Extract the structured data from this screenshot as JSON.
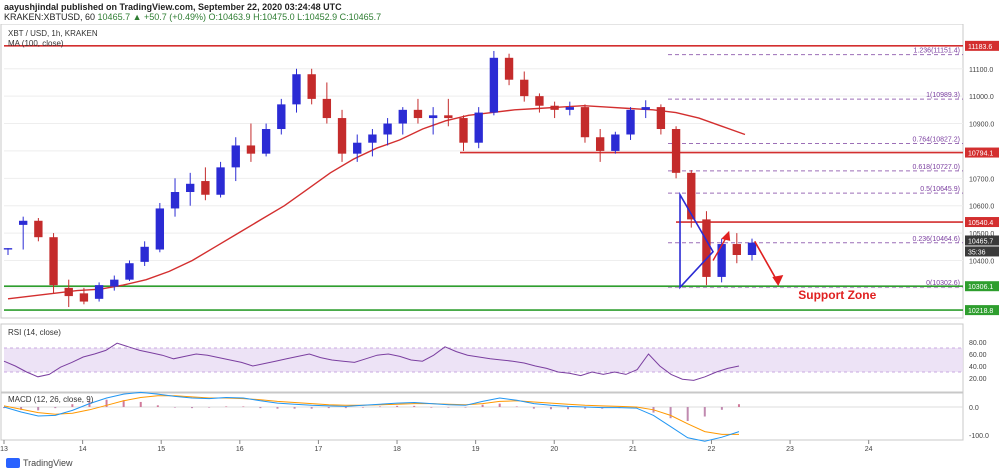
{
  "header": {
    "author_line": "aayushjindal published on TradingView.com, September 22, 2020 03:24:48 UTC",
    "symbol": "KRAKEN:XBTUSD, 60",
    "ohlc": "10465.7 ▲ +50.7 (+0.49%) O:10463.9 H:10475.0 L:10452.9 C:10465.7"
  },
  "footer": {
    "brand": "TradingView"
  },
  "colors": {
    "up": "#2b2bd4",
    "down": "#c42b2b",
    "ma": "#d32f2f",
    "resistance": "#d32f2f",
    "support": "#2e9e2e",
    "fib": "#7b3fa0",
    "triangle": "#2b2bd4",
    "arrow": "#e02020",
    "rsi_line": "#7b3fa0",
    "rsi_band": "#e9dcf4",
    "macd_line": "#2196f3",
    "signal_line": "#ff9800",
    "hist_pos": "#d07a9a",
    "hist_neg": "#c08ab0",
    "label_red": "#d32f2f",
    "label_green": "#2e9e2e",
    "label_dark": "#3a3a3a"
  },
  "chart_data": {
    "type": "candlestick",
    "title": "XBT / USD, 1h, KRAKEN",
    "indicator_label": "MA (100, close)",
    "x_ticks": [
      "13",
      "14",
      "15",
      "16",
      "17",
      "18",
      "19",
      "20",
      "21",
      "22",
      "23",
      "24"
    ],
    "y_ticks": [
      10300,
      10400,
      10500,
      10600,
      10700,
      10800,
      10900,
      11000,
      11100
    ],
    "y_range": [
      10190,
      11205
    ],
    "x_range": [
      13.0,
      25.2
    ],
    "ohlc_series": [
      [
        10440,
        10445,
        10420,
        10445
      ],
      [
        10530,
        10560,
        10440,
        10545
      ],
      [
        10545,
        10555,
        10470,
        10485
      ],
      [
        10485,
        10500,
        10280,
        10310
      ],
      [
        10300,
        10330,
        10230,
        10270
      ],
      [
        10280,
        10300,
        10240,
        10250
      ],
      [
        10260,
        10320,
        10250,
        10310
      ],
      [
        10305,
        10345,
        10290,
        10330
      ],
      [
        10330,
        10400,
        10325,
        10390
      ],
      [
        10395,
        10470,
        10380,
        10450
      ],
      [
        10440,
        10610,
        10430,
        10590
      ],
      [
        10590,
        10700,
        10560,
        10650
      ],
      [
        10650,
        10720,
        10600,
        10680
      ],
      [
        10690,
        10740,
        10620,
        10640
      ],
      [
        10640,
        10760,
        10630,
        10740
      ],
      [
        10740,
        10850,
        10690,
        10820
      ],
      [
        10820,
        10900,
        10760,
        10790
      ],
      [
        10790,
        10900,
        10780,
        10880
      ],
      [
        10880,
        10990,
        10860,
        10970
      ],
      [
        10970,
        11100,
        10940,
        11080
      ],
      [
        11080,
        11100,
        10970,
        10990
      ],
      [
        10990,
        11050,
        10900,
        10920
      ],
      [
        10920,
        10950,
        10760,
        10790
      ],
      [
        10790,
        10860,
        10760,
        10830
      ],
      [
        10830,
        10880,
        10780,
        10860
      ],
      [
        10860,
        10920,
        10820,
        10900
      ],
      [
        10900,
        10960,
        10860,
        10950
      ],
      [
        10950,
        10990,
        10900,
        10920
      ],
      [
        10920,
        10960,
        10860,
        10930
      ],
      [
        10930,
        10990,
        10890,
        10920
      ],
      [
        10920,
        10930,
        10800,
        10830
      ],
      [
        10830,
        10960,
        10810,
        10940
      ],
      [
        10940,
        11165,
        10930,
        11140
      ],
      [
        11140,
        11155,
        11040,
        11060
      ],
      [
        11060,
        11090,
        10980,
        11000
      ],
      [
        11000,
        11010,
        10940,
        10965
      ],
      [
        10965,
        10980,
        10920,
        10950
      ],
      [
        10950,
        10980,
        10930,
        10960
      ],
      [
        10960,
        10970,
        10830,
        10850
      ],
      [
        10850,
        10880,
        10760,
        10800
      ],
      [
        10800,
        10870,
        10790,
        10860
      ],
      [
        10860,
        10960,
        10840,
        10950
      ],
      [
        10950,
        10985,
        10920,
        10960
      ],
      [
        10960,
        10970,
        10860,
        10880
      ],
      [
        10880,
        10890,
        10700,
        10720
      ],
      [
        10720,
        10730,
        10520,
        10550
      ],
      [
        10550,
        10580,
        10310,
        10340
      ],
      [
        10340,
        10480,
        10320,
        10460
      ],
      [
        10460,
        10500,
        10390,
        10420
      ],
      [
        10420,
        10480,
        10400,
        10465
      ]
    ],
    "ma_series": [
      10260,
      10270,
      10280,
      10290,
      10295,
      10310,
      10330,
      10360,
      10400,
      10450,
      10500,
      10550,
      10600,
      10660,
      10720,
      10770,
      10810,
      10840,
      10880,
      10910,
      10930,
      10940,
      10950,
      10955,
      10960,
      10965,
      10960,
      10955,
      10950,
      10940,
      10920,
      10890,
      10860
    ],
    "resistance_lines": [
      {
        "label": "11183.6",
        "y": 11183.6
      },
      {
        "label": "10794.1",
        "y": 10794.1
      },
      {
        "label": "10540.4",
        "y": 10540.4
      }
    ],
    "support_lines": [
      {
        "label": "10306.1",
        "y": 10306.1
      },
      {
        "label": "10218.8",
        "y": 10218.8
      }
    ],
    "fib_levels": [
      {
        "label": "1.236(11151.4)",
        "y": 11151.4
      },
      {
        "label": "1(10989.3)",
        "y": 10989.3
      },
      {
        "label": "0.764(10827.2)",
        "y": 10827.2
      },
      {
        "label": "0.618(10727.0)",
        "y": 10727.0
      },
      {
        "label": "0.5(10645.9)",
        "y": 10645.9
      },
      {
        "label": "0.236(10464.6)",
        "y": 10464.6
      },
      {
        "label": "0(10302.6)",
        "y": 10302.6
      }
    ],
    "price_labels": [
      {
        "text": "11183.6",
        "y": 11183.6,
        "color": "red"
      },
      {
        "text": "10794.1",
        "y": 10794.1,
        "color": "red"
      },
      {
        "text": "10540.4",
        "y": 10540.4,
        "color": "red"
      },
      {
        "text": "10465.7",
        "y": 10473,
        "color": "dark"
      },
      {
        "text": "35:36",
        "y": 10433,
        "color": "dark"
      },
      {
        "text": "10306.1",
        "y": 10306.1,
        "color": "green"
      },
      {
        "text": "10218.8",
        "y": 10218.8,
        "color": "green"
      }
    ],
    "annotation": "Support Zone",
    "rsi": {
      "label": "RSI (14, close)",
      "y_ticks": [
        20,
        40,
        60,
        80
      ],
      "band": [
        30,
        70
      ],
      "values": [
        48,
        40,
        30,
        22,
        26,
        38,
        46,
        55,
        60,
        66,
        78,
        72,
        66,
        62,
        58,
        52,
        56,
        60,
        58,
        54,
        50,
        46,
        40,
        44,
        48,
        52,
        56,
        60,
        54,
        50,
        48,
        46,
        52,
        58,
        60,
        56,
        50,
        48,
        58,
        72,
        64,
        58,
        55,
        52,
        50,
        48,
        45,
        40,
        36,
        30,
        28,
        24,
        30,
        26,
        30,
        26,
        34,
        60,
        40,
        26,
        18,
        16,
        22,
        30,
        36,
        40
      ]
    },
    "macd": {
      "label": "MACD (12, 26, close, 9)",
      "y_ticks": [
        0.0,
        -100.0
      ],
      "macd_values": [
        0,
        -18,
        -32,
        -30,
        -12,
        12,
        32,
        46,
        52,
        46,
        38,
        32,
        30,
        34,
        32,
        22,
        14,
        10,
        6,
        4,
        2,
        6,
        10,
        14,
        16,
        12,
        8,
        6,
        20,
        32,
        24,
        12,
        6,
        2,
        0,
        -2,
        -2,
        -4,
        -30,
        -70,
        -110,
        -122,
        -108,
        -88
      ],
      "signal_values": [
        4,
        -8,
        -20,
        -26,
        -22,
        -10,
        6,
        22,
        34,
        40,
        40,
        36,
        32,
        32,
        30,
        26,
        20,
        16,
        12,
        8,
        6,
        6,
        8,
        10,
        12,
        12,
        10,
        8,
        12,
        20,
        22,
        18,
        14,
        10,
        6,
        4,
        2,
        0,
        -10,
        -30,
        -60,
        -88,
        -98,
        -98
      ],
      "histogram": [
        -4,
        -10,
        -12,
        -4,
        10,
        22,
        26,
        24,
        18,
        6,
        -2,
        -4,
        -2,
        2,
        2,
        -4,
        -6,
        -6,
        -6,
        -4,
        -4,
        0,
        2,
        4,
        4,
        0,
        -2,
        -2,
        8,
        12,
        2,
        -6,
        -8,
        -8,
        -6,
        -6,
        -4,
        -4,
        -20,
        -40,
        -50,
        -34,
        -10,
        10
      ]
    }
  }
}
